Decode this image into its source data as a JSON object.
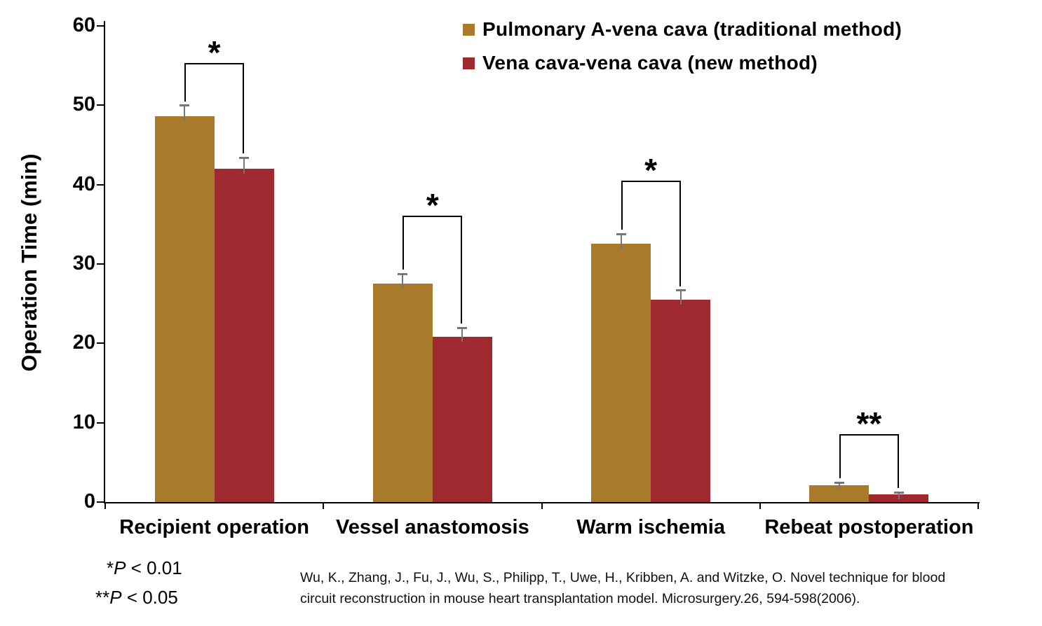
{
  "chart_data": {
    "type": "bar",
    "title": "",
    "xlabel": "",
    "ylabel": "Operation Time (min)",
    "ylim": [
      0,
      60
    ],
    "yticks": [
      0,
      10,
      20,
      30,
      40,
      50,
      60
    ],
    "grid": false,
    "legend_position": "top-right",
    "categories": [
      "Recipient operation",
      "Vessel anastomosis",
      "Warm ischemia",
      "Rebeat postoperation"
    ],
    "series": [
      {
        "name": "Pulmonary A-vena cava (traditional method)",
        "color": "#A97A2B",
        "values": [
          48.6,
          27.5,
          32.6,
          2.1
        ],
        "errors": [
          1.4,
          1.3,
          1.2,
          0.4
        ]
      },
      {
        "name": "Vena cava-vena cava (new method)",
        "color": "#9E2A2F",
        "values": [
          42.0,
          20.8,
          25.5,
          1.0
        ],
        "errors": [
          1.4,
          1.2,
          1.2,
          0.25
        ]
      }
    ],
    "significance": [
      {
        "category_index": 0,
        "label": "*",
        "bracket_top": 55.3
      },
      {
        "category_index": 1,
        "label": "*",
        "bracket_top": 36.1
      },
      {
        "category_index": 2,
        "label": "*",
        "bracket_top": 40.5
      },
      {
        "category_index": 3,
        "label": "**",
        "bracket_top": 8.6
      }
    ]
  },
  "annotations": {
    "note1": {
      "star": "*",
      "var": "P",
      "rest": " < 0.01"
    },
    "note2": {
      "star": "**",
      "var": "P",
      "rest": " < 0.05"
    },
    "citation_line1": "Wu, K., Zhang, J., Fu, J., Wu, S., Philipp, T., Uwe, H., Kribben, A. and Witzke, O. Novel technique for blood",
    "citation_line2": "circuit reconstruction in mouse heart transplantation model. Microsurgery.26, 594-598(2006)."
  }
}
